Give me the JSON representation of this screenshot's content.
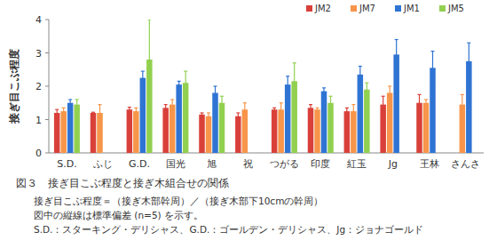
{
  "chart_data": {
    "type": "bar",
    "title": "図３　接ぎ目こぶ程度と接ぎ木組合せの関係",
    "notes": [
      "接ぎ目こぶ程度＝（接ぎ木部幹周）／（接ぎ木部下10cmの幹周）",
      "図中の縦線は標準偏差 (n=5) を示す。",
      "S.D.：スターキング・デリシャス、G.D.：ゴールデン・デリシャス、Jg：ジョナゴールド"
    ],
    "y_label": "接ぎ目こぶ程度",
    "categories": [
      "S.D.",
      "ふじ",
      "G.D.",
      "国光",
      "旭",
      "祝",
      "つがる",
      "印度",
      "紅玉",
      "Jg",
      "王林",
      "さんさ"
    ],
    "series": [
      {
        "name": "JM2",
        "color": "#d9403a",
        "values": [
          1.2,
          1.2,
          1.3,
          1.35,
          1.15,
          1.1,
          1.3,
          1.35,
          1.25,
          1.45,
          1.5,
          null
        ],
        "errors": [
          0.1,
          0.02,
          0.07,
          0.1,
          0.05,
          0.1,
          0.05,
          0.1,
          0.1,
          0.25,
          0.25,
          null
        ]
      },
      {
        "name": "JM7",
        "color": "#f7954a",
        "values": [
          1.25,
          1.2,
          1.25,
          1.45,
          1.1,
          1.3,
          1.3,
          1.3,
          1.25,
          1.8,
          1.5,
          1.45
        ],
        "errors": [
          0.1,
          0.25,
          0.1,
          0.15,
          0.1,
          0.2,
          0.2,
          0.05,
          0.2,
          0.2,
          0.1,
          0.3
        ]
      },
      {
        "name": "JM1",
        "color": "#2f74d3",
        "values": [
          1.5,
          null,
          2.25,
          2.05,
          1.8,
          null,
          2.05,
          1.85,
          2.35,
          2.95,
          2.55,
          2.75
        ],
        "errors": [
          0.1,
          null,
          0.2,
          0.1,
          0.2,
          null,
          0.25,
          0.1,
          0.25,
          0.45,
          0.5,
          0.55
        ]
      },
      {
        "name": "JM5",
        "color": "#92d050",
        "values": [
          1.45,
          null,
          2.8,
          2.1,
          1.5,
          null,
          2.15,
          1.5,
          1.9,
          null,
          null,
          null
        ],
        "errors": [
          0.15,
          null,
          1.2,
          0.35,
          0.2,
          null,
          0.55,
          0.2,
          0.2,
          null,
          null,
          null
        ]
      }
    ],
    "ylim": [
      0,
      4
    ],
    "yticks": [
      0,
      1,
      2,
      3,
      4
    ],
    "grid": false,
    "legend": "top-right"
  }
}
